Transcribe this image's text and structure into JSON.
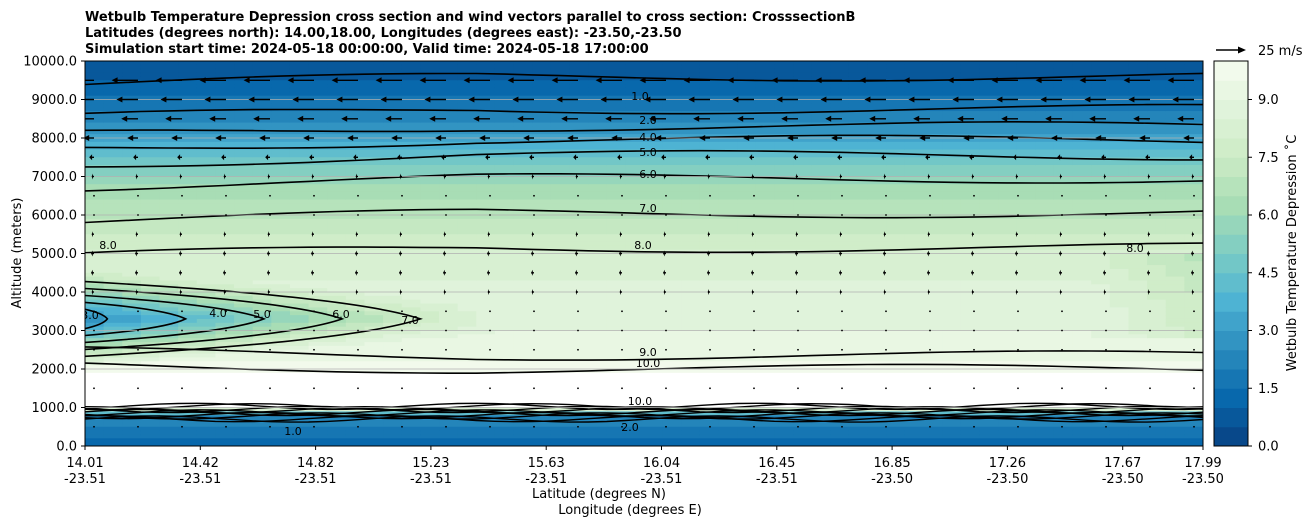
{
  "chart_data": {
    "type": "heatmap",
    "title_lines": [
      "Wetbulb Temperature Depression cross section and wind vectors parallel to cross section: CrosssectionB",
      "Latitudes (degrees north): 14.00,18.00, Longitudes (degrees east): -23.50,-23.50",
      "Simulation start time: 2024-05-18 00:00:00, Valid time: 2024-05-18 17:00:00"
    ],
    "xlabel": "Latitude (degrees N)",
    "xlabel2": "Longitude (degrees E)",
    "ylabel": "Altitude (meters)",
    "ylim": [
      0,
      10000
    ],
    "y_ticks": [
      "0.0",
      "1000.0",
      "2000.0",
      "3000.0",
      "4000.0",
      "5000.0",
      "6000.0",
      "7000.0",
      "8000.0",
      "9000.0",
      "10000.0"
    ],
    "x_ticks_lat": [
      "14.01",
      "14.42",
      "14.82",
      "15.23",
      "15.63",
      "16.04",
      "16.45",
      "16.85",
      "17.26",
      "17.67",
      "17.99"
    ],
    "x_ticks_lon": [
      "-23.51",
      "-23.51",
      "-23.51",
      "-23.51",
      "-23.51",
      "-23.51",
      "-23.51",
      "-23.50",
      "-23.50",
      "-23.50",
      "-23.50"
    ],
    "colorbar": {
      "label": "Wetbulb Temperature Depression ˚C",
      "range": [
        0,
        10
      ],
      "ticks": [
        "0.0",
        "1.5",
        "3.0",
        "4.5",
        "6.0",
        "7.5",
        "9.0"
      ]
    },
    "wind_key": {
      "label": "25 m/s",
      "speed": 25
    },
    "contour_labels": [
      "1.0",
      "2.0",
      "4.0",
      "5.0",
      "6.0",
      "7.0",
      "8.0",
      "9.0",
      "10.0",
      "3.0",
      "4.0",
      "5.0",
      "6.0",
      "7.0",
      "8.0",
      "8.0",
      "2.0",
      "1.0",
      "10.0"
    ],
    "contour_levels": [
      1,
      2,
      3,
      4,
      5,
      6,
      7,
      8,
      9,
      10
    ],
    "profile_center": {
      "altitude": [
        0,
        400,
        800,
        1000,
        1300,
        1800,
        2200,
        3000,
        4000,
        5000,
        5500,
        6000,
        6800,
        7300,
        7800,
        8300,
        9000,
        9600,
        10000
      ],
      "depression": [
        1.0,
        1.8,
        2.5,
        10.0,
        10.5,
        10.2,
        9.5,
        9.0,
        8.7,
        8.1,
        7.5,
        6.9,
        6.0,
        5.0,
        3.8,
        2.6,
        1.6,
        0.9,
        0.5
      ]
    },
    "wind_rows": [
      {
        "altitude": 9500,
        "u": -22
      },
      {
        "altitude": 9000,
        "u": -18
      },
      {
        "altitude": 8500,
        "u": -14
      },
      {
        "altitude": 8000,
        "u": -9
      },
      {
        "altitude": 7500,
        "u": -4
      },
      {
        "altitude": 7000,
        "u": -2
      },
      {
        "altitude": 6500,
        "u": -1.5
      },
      {
        "altitude": 6000,
        "u": -1.5
      },
      {
        "altitude": 5500,
        "u": -2
      },
      {
        "altitude": 5000,
        "u": -2.5
      },
      {
        "altitude": 4500,
        "u": -2.5
      },
      {
        "altitude": 4000,
        "u": -2
      },
      {
        "altitude": 3500,
        "u": -1.5
      },
      {
        "altitude": 3000,
        "u": -1
      },
      {
        "altitude": 2500,
        "u": -0.5
      },
      {
        "altitude": 1500,
        "u": -0.3
      },
      {
        "altitude": 500,
        "u": -0.3
      }
    ]
  }
}
